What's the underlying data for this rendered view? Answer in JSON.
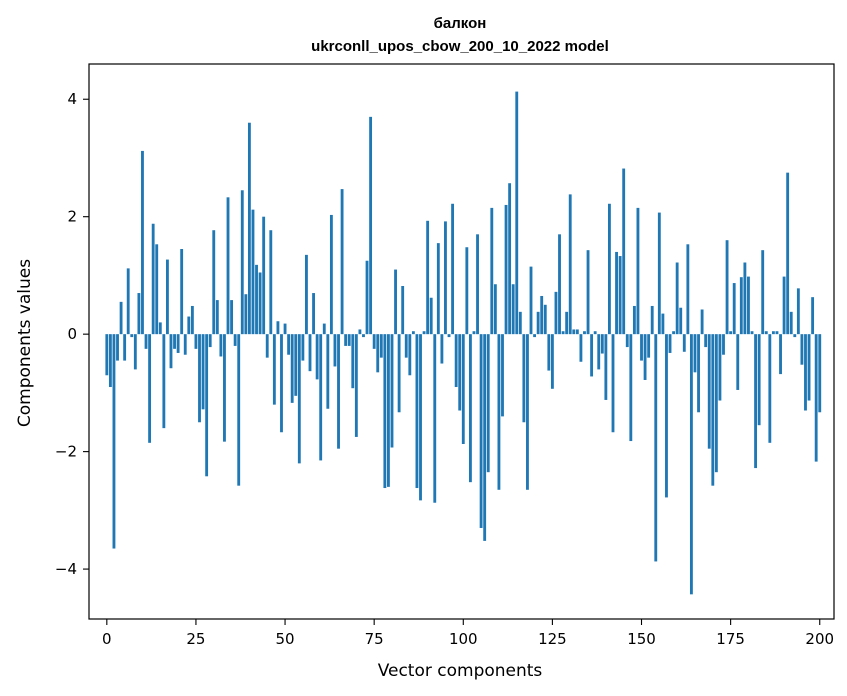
{
  "chart_data": {
    "type": "bar",
    "title": "балкон",
    "subtitle": "ukrconll_upos_cbow_200_10_2022 model",
    "xlabel": "Vector components",
    "ylabel": "Components values",
    "xlim": [
      -5,
      204
    ],
    "ylim": [
      -4.85,
      4.6
    ],
    "xticks": [
      0,
      25,
      50,
      75,
      100,
      125,
      150,
      175,
      200
    ],
    "yticks": [
      -4,
      -2,
      0,
      2,
      4
    ],
    "xtick_labels": [
      "0",
      "25",
      "50",
      "75",
      "100",
      "125",
      "150",
      "175",
      "200"
    ],
    "ytick_labels": [
      "−4",
      "−2",
      "0",
      "2",
      "4"
    ],
    "grid": false,
    "bar_color": "#1f77b4",
    "values": [
      -0.7,
      -0.9,
      -3.65,
      -0.45,
      0.55,
      -0.45,
      1.12,
      -0.05,
      -0.6,
      0.7,
      3.12,
      -0.25,
      -1.85,
      1.88,
      1.53,
      0.2,
      -1.6,
      1.27,
      -0.58,
      -0.25,
      -0.32,
      1.45,
      -0.35,
      0.3,
      0.48,
      -0.25,
      -1.5,
      -1.28,
      -2.42,
      -0.22,
      1.77,
      0.58,
      -0.38,
      -1.83,
      2.33,
      0.58,
      -0.2,
      -2.58,
      2.45,
      0.68,
      3.6,
      2.12,
      1.18,
      1.05,
      2.0,
      -0.4,
      1.77,
      -1.2,
      0.22,
      -1.67,
      0.18,
      -0.35,
      -1.17,
      -1.05,
      -2.2,
      -0.45,
      1.35,
      -0.63,
      0.7,
      -0.77,
      -2.15,
      0.18,
      -1.27,
      2.03,
      -0.55,
      -1.95,
      2.47,
      -0.2,
      -0.2,
      -0.92,
      -1.75,
      0.08,
      -0.05,
      1.25,
      3.7,
      -0.25,
      -0.65,
      -0.4,
      -2.62,
      -2.6,
      -1.93,
      1.1,
      -1.33,
      0.82,
      -0.4,
      -0.7,
      0.05,
      -2.62,
      -2.83,
      0.05,
      1.93,
      0.62,
      -2.87,
      1.55,
      -0.5,
      1.92,
      -0.05,
      2.22,
      -0.9,
      -1.3,
      -1.87,
      1.48,
      -2.52,
      0.05,
      1.7,
      -3.3,
      -3.52,
      -2.35,
      2.15,
      0.85,
      -2.65,
      -1.4,
      2.2,
      2.57,
      0.85,
      4.13,
      0.38,
      -1.5,
      -2.65,
      1.15,
      -0.05,
      0.38,
      0.65,
      0.5,
      -0.62,
      -0.93,
      0.72,
      1.7,
      0.05,
      0.38,
      2.38,
      0.08,
      0.08,
      -0.47,
      0.05,
      1.43,
      -0.72,
      0.05,
      -0.6,
      -0.33,
      -1.12,
      2.22,
      -1.67,
      1.4,
      1.33,
      2.82,
      -0.22,
      -1.82,
      0.48,
      2.15,
      -0.45,
      -0.78,
      -0.4,
      0.48,
      -3.87,
      2.07,
      0.35,
      -2.78,
      -0.32,
      0.05,
      1.22,
      0.45,
      -0.3,
      1.53,
      -4.43,
      -0.65,
      -1.33,
      0.42,
      -0.22,
      -1.95,
      -2.58,
      -2.35,
      -1.13,
      -0.35,
      1.6,
      0.05,
      0.87,
      -0.95,
      0.97,
      1.22,
      0.98,
      0.05,
      -2.28,
      -1.55,
      1.43,
      0.05,
      -1.85,
      0.05,
      0.05,
      -0.68,
      0.98,
      2.75,
      0.38,
      -0.05,
      0.78,
      -0.52,
      -1.3,
      -1.13,
      0.63,
      -2.17,
      -1.33
    ]
  }
}
